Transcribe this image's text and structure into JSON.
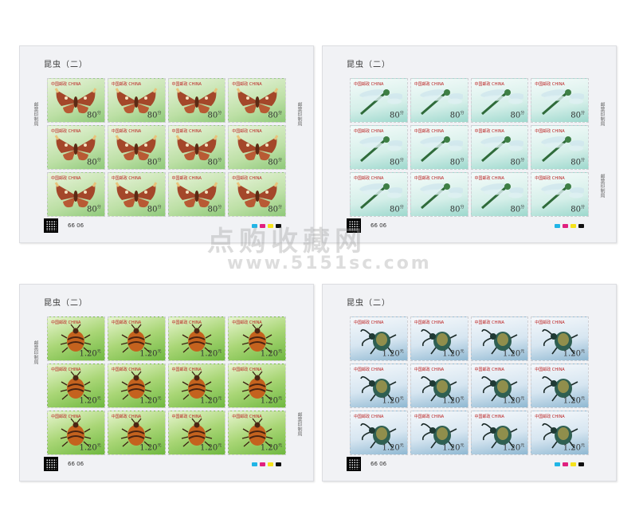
{
  "sheets": [
    {
      "id": "moth",
      "title": "昆虫（二）",
      "stamp_header": "中国邮政 CHINA",
      "denomination": "80",
      "denomination_unit": "分",
      "sheet_number": "66 06",
      "side_text": "邮票印制局"
    },
    {
      "id": "dragonfly",
      "title": "昆虫（二）",
      "stamp_header": "中国邮政 CHINA",
      "denomination": "80",
      "denomination_unit": "分",
      "sheet_number": "66 06",
      "side_text": "邮票印制局"
    },
    {
      "id": "bug",
      "title": "昆虫（二）",
      "stamp_header": "中国邮政 CHINA",
      "denomination": "1.20",
      "denomination_unit": "元",
      "sheet_number": "66 06",
      "side_text": "邮票印制局"
    },
    {
      "id": "beetle",
      "title": "昆虫（二）",
      "stamp_header": "中国邮政 CHINA",
      "denomination": "1.20",
      "denomination_unit": "元",
      "sheet_number": "66 06",
      "side_text": ""
    }
  ],
  "watermark": {
    "text": "点购收藏网",
    "url": "www.5151sc.com"
  },
  "colors": {
    "cyan": "#21b5e6",
    "magenta": "#e0207f",
    "yellow": "#f5e21c",
    "black": "#111111"
  }
}
